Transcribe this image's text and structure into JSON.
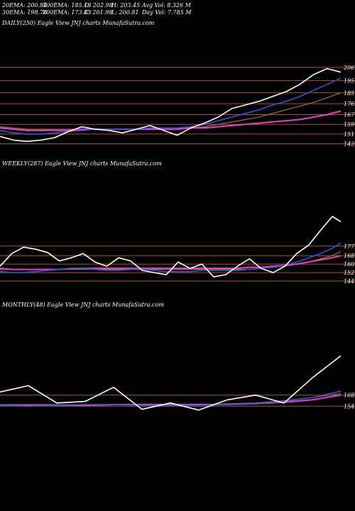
{
  "header": {
    "ema20": "20EMA: 200.84",
    "ema100": "100EMA: 185.13",
    "open": "O: 202.98",
    "high": "H: 203.45",
    "avgvol": "Avg Vol: 8.326  M",
    "ema30": "30EMA: 198.76",
    "ema200": "200EMA: 173.83",
    "close": "C: 201.98",
    "low": "L: 200.81",
    "dayvol": "Day Vol: 7.785 M"
  },
  "panels": {
    "daily": "DAILY(250) Eagle   View  JNJ charts MunafaSutra.com",
    "weekly": "WEEKLY(287) Eagle   View  JNJ charts MunafaSutra.com",
    "monthly": "MONTHLY(48) Eagle   View  JNJ charts MunafaSutra.com"
  },
  "colors": {
    "background": "#000000",
    "price": "#ffffff",
    "ema_blue": "#2b56e0",
    "ema_pink": "#ee3cd6",
    "ema_gold": "#b07826",
    "grid_orange": "#b3521a"
  },
  "chart_data": [
    {
      "type": "line",
      "timeframe": "daily",
      "levels": [
        "206",
        "195",
        "185",
        "176",
        "167",
        "159",
        "151",
        "143"
      ],
      "level_values": [
        206,
        195,
        185,
        176,
        167,
        159,
        151,
        143
      ],
      "ylim": [
        141,
        210
      ],
      "x": [
        0,
        10,
        20,
        30,
        40,
        50,
        60,
        70,
        80,
        90,
        100,
        110,
        120,
        130,
        140,
        150,
        160,
        170,
        180,
        190,
        200,
        210,
        220,
        230,
        240,
        250
      ],
      "series": [
        {
          "values": [
            149,
            146,
            145,
            146,
            148,
            153,
            157,
            155,
            154,
            152,
            155,
            158,
            154,
            150,
            156,
            160,
            165,
            172,
            175,
            178,
            182,
            186,
            192,
            200,
            205,
            202
          ],
          "style": "price"
        },
        {
          "values": [
            154,
            152,
            151,
            151,
            152,
            153,
            154,
            155,
            155,
            155,
            155,
            156,
            156,
            156,
            157,
            159,
            162,
            165,
            168,
            171,
            175,
            178,
            182,
            187,
            192,
            197
          ],
          "style": "blue"
        },
        {
          "values": [
            157,
            156,
            155,
            155,
            155,
            155,
            155,
            155,
            155,
            155,
            155,
            155,
            156,
            156,
            156,
            157,
            159,
            161,
            163,
            165,
            168,
            171,
            174,
            177,
            181,
            185
          ],
          "style": "gold"
        },
        {
          "values": [
            156,
            155,
            154,
            154,
            154,
            154,
            155,
            155,
            155,
            155,
            155,
            155,
            155,
            155,
            156,
            156,
            157,
            158,
            159,
            160,
            161,
            162,
            163,
            165,
            167,
            170
          ],
          "style": "pink"
        }
      ]
    },
    {
      "type": "line",
      "timeframe": "weekly",
      "levels": [
        "177",
        "168",
        "160",
        "152",
        "144"
      ],
      "level_values": [
        177,
        168,
        160,
        152,
        144
      ],
      "ylim": [
        138,
        215
      ],
      "x": [
        0,
        10,
        20,
        30,
        40,
        50,
        60,
        70,
        80,
        90,
        100,
        110,
        120,
        130,
        140,
        150,
        160,
        170,
        180,
        190,
        200,
        210,
        220,
        230,
        240,
        250,
        260,
        270,
        280,
        287
      ],
      "series": [
        {
          "values": [
            158,
            170,
            176,
            174,
            171,
            163,
            166,
            170,
            162,
            158,
            166,
            163,
            154,
            152,
            150,
            162,
            156,
            160,
            148,
            150,
            158,
            165,
            156,
            152,
            158,
            170,
            178,
            192,
            205,
            200
          ],
          "style": "price"
        },
        {
          "values": [
            153,
            152,
            152,
            153,
            154,
            155,
            156,
            156,
            155,
            154,
            154,
            155,
            155,
            154,
            153,
            153,
            153,
            154,
            154,
            154,
            154,
            155,
            156,
            157,
            159,
            162,
            166,
            170,
            175,
            180
          ],
          "style": "blue"
        },
        {
          "values": [
            155,
            155,
            155,
            155,
            155,
            155,
            155,
            155,
            155,
            155,
            155,
            155,
            155,
            155,
            155,
            155,
            155,
            155,
            155,
            155,
            155,
            155,
            156,
            157,
            158,
            160,
            162,
            165,
            168,
            172
          ],
          "style": "gold"
        },
        {
          "values": [
            156,
            155,
            155,
            155,
            155,
            155,
            156,
            156,
            156,
            156,
            156,
            156,
            156,
            156,
            156,
            156,
            156,
            156,
            156,
            156,
            156,
            157,
            157,
            158,
            159,
            160,
            162,
            164,
            166,
            168
          ],
          "style": "pink"
        }
      ]
    },
    {
      "type": "line",
      "timeframe": "monthly",
      "levels": [
        "168",
        "154"
      ],
      "level_values": [
        168,
        154
      ],
      "ylim": [
        138,
        230
      ],
      "x": [
        0,
        4,
        8,
        12,
        16,
        20,
        24,
        28,
        32,
        36,
        40,
        44,
        48
      ],
      "series": [
        {
          "values": [
            172,
            180,
            158,
            160,
            178,
            150,
            158,
            149,
            162,
            168,
            158,
            190,
            218
          ],
          "style": "price"
        },
        {
          "values": [
            155,
            154,
            155,
            156,
            156,
            155,
            155,
            155,
            156,
            157,
            160,
            165,
            173
          ],
          "style": "blue"
        },
        {
          "values": [
            156,
            156,
            156,
            156,
            156,
            156,
            156,
            156,
            157,
            158,
            161,
            165,
            170
          ],
          "style": "gold"
        },
        {
          "values": [
            155,
            155,
            155,
            155,
            156,
            156,
            156,
            156,
            156,
            157,
            159,
            162,
            168
          ],
          "style": "pink"
        }
      ]
    }
  ]
}
